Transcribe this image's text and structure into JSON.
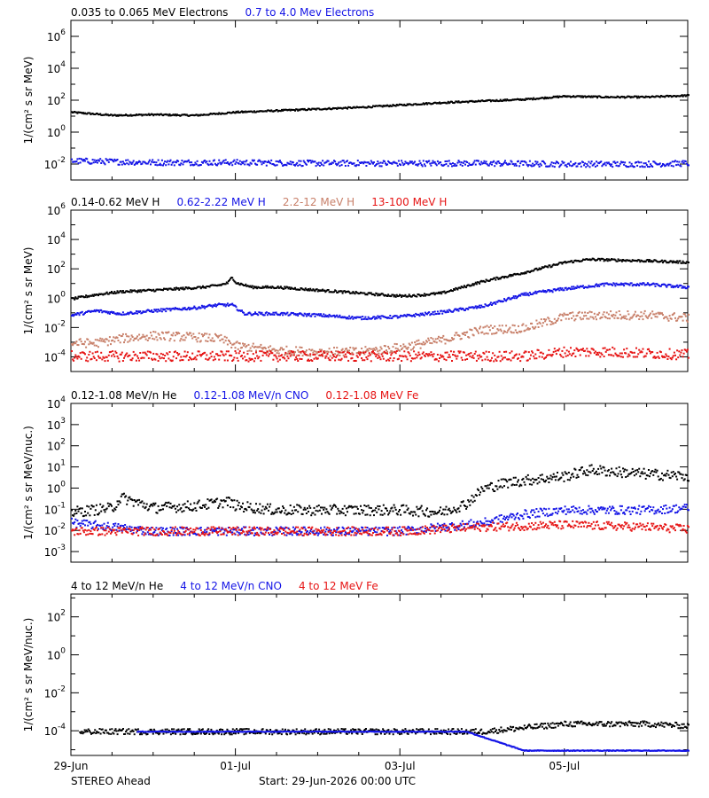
{
  "colors": {
    "black": "#000000",
    "blue": "#1414e6",
    "tan": "#c8806a",
    "red": "#e61414",
    "background": "#ffffff"
  },
  "x_axis": {
    "range": [
      0,
      7.5
    ],
    "range_note": "days since 29-Jun-2026 00:00 UTC",
    "tick_labels": [
      {
        "label": "29-Jun",
        "day": 0
      },
      {
        "label": "01-Jul",
        "day": 2
      },
      {
        "label": "03-Jul",
        "day": 4
      },
      {
        "label": "05-Jul",
        "day": 6
      }
    ]
  },
  "footer": {
    "spacecraft": "STEREO Ahead",
    "start": "Start: 29-Jun-2026 00:00 UTC"
  },
  "chart_data": [
    {
      "type": "scatter",
      "title": "",
      "ylabel": "1/(cm² s sr MeV)",
      "ylog": true,
      "ylim_exp": [
        -3,
        7
      ],
      "ytick_exps": [
        -2,
        0,
        2,
        4,
        6
      ],
      "ytick_minor_exps": [
        -3,
        -1,
        1,
        3,
        5,
        7
      ],
      "legend": [
        {
          "text": "0.035 to 0.065 MeV Electrons",
          "color": "black"
        },
        {
          "text": "0.7 to 4.0 Mev Electrons",
          "color": "blue"
        }
      ],
      "series": [
        {
          "color": "black",
          "spread": 0.05,
          "points": [
            [
              0,
              1.3
            ],
            [
              0.5,
              1.1
            ],
            [
              1,
              1.15
            ],
            [
              1.5,
              1.1
            ],
            [
              2,
              1.3
            ],
            [
              2.5,
              1.4
            ],
            [
              3,
              1.5
            ],
            [
              3.5,
              1.6
            ],
            [
              4,
              1.75
            ],
            [
              4.5,
              1.9
            ],
            [
              5,
              2.0
            ],
            [
              5.5,
              2.1
            ],
            [
              6,
              2.3
            ],
            [
              6.5,
              2.25
            ],
            [
              7,
              2.25
            ],
            [
              7.5,
              2.35
            ]
          ]
        },
        {
          "color": "blue",
          "spread": 0.18,
          "points": [
            [
              0,
              -1.75
            ],
            [
              0.5,
              -1.8
            ],
            [
              1,
              -1.85
            ],
            [
              1.5,
              -1.85
            ],
            [
              2,
              -1.85
            ],
            [
              3,
              -1.9
            ],
            [
              4,
              -1.9
            ],
            [
              5,
              -1.9
            ],
            [
              6,
              -1.95
            ],
            [
              7,
              -1.95
            ],
            [
              7.5,
              -1.9
            ]
          ]
        }
      ]
    },
    {
      "type": "scatter",
      "title": "",
      "ylabel": "1/(cm² s sr MeV)",
      "ylog": true,
      "ylim_exp": [
        -5,
        6
      ],
      "ytick_exps": [
        -4,
        -2,
        0,
        2,
        4,
        6
      ],
      "ytick_minor_exps": [
        -5,
        -3,
        -1,
        1,
        3,
        5
      ],
      "legend": [
        {
          "text": "0.14-0.62 MeV H",
          "color": "black"
        },
        {
          "text": "0.62-2.22 MeV H",
          "color": "blue"
        },
        {
          "text": "2.2-12 MeV H",
          "color": "tan"
        },
        {
          "text": "13-100 MeV H",
          "color": "red"
        }
      ],
      "series": [
        {
          "color": "black",
          "spread": 0.08,
          "points": [
            [
              0,
              0.0
            ],
            [
              0.3,
              0.3
            ],
            [
              0.6,
              0.5
            ],
            [
              1,
              0.6
            ],
            [
              1.3,
              0.7
            ],
            [
              1.6,
              0.8
            ],
            [
              1.8,
              0.95
            ],
            [
              1.9,
              1.1
            ],
            [
              1.95,
              1.5
            ],
            [
              2.0,
              1.1
            ],
            [
              2.2,
              0.8
            ],
            [
              2.5,
              0.8
            ],
            [
              3,
              0.6
            ],
            [
              3.5,
              0.4
            ],
            [
              4,
              0.2
            ],
            [
              4.2,
              0.25
            ],
            [
              4.5,
              0.4
            ],
            [
              5,
              1.2
            ],
            [
              5.5,
              1.8
            ],
            [
              6,
              2.5
            ],
            [
              6.3,
              2.7
            ],
            [
              7,
              2.6
            ],
            [
              7.5,
              2.5
            ]
          ]
        },
        {
          "color": "blue",
          "spread": 0.1,
          "points": [
            [
              0,
              -1.1
            ],
            [
              0.3,
              -0.8
            ],
            [
              0.6,
              -1.0
            ],
            [
              1,
              -0.8
            ],
            [
              1.5,
              -0.6
            ],
            [
              1.8,
              -0.4
            ],
            [
              1.95,
              -0.4
            ],
            [
              2.1,
              -1.0
            ],
            [
              2.5,
              -1.0
            ],
            [
              3,
              -1.1
            ],
            [
              3.5,
              -1.3
            ],
            [
              4,
              -1.2
            ],
            [
              4.5,
              -0.9
            ],
            [
              5,
              -0.5
            ],
            [
              5.5,
              0.3
            ],
            [
              6,
              0.7
            ],
            [
              6.5,
              1.0
            ],
            [
              7,
              1.0
            ],
            [
              7.5,
              0.8
            ]
          ]
        },
        {
          "color": "tan",
          "spread": 0.3,
          "points": [
            [
              0,
              -3.0
            ],
            [
              0.3,
              -3.0
            ],
            [
              0.6,
              -2.7
            ],
            [
              1,
              -2.5
            ],
            [
              1.5,
              -2.6
            ],
            [
              1.8,
              -2.7
            ],
            [
              2,
              -3.2
            ],
            [
              2.5,
              -3.5
            ],
            [
              3,
              -3.6
            ],
            [
              3.5,
              -3.6
            ],
            [
              4,
              -3.3
            ],
            [
              4.5,
              -2.8
            ],
            [
              5,
              -2.1
            ],
            [
              5.5,
              -2.0
            ],
            [
              6,
              -1.2
            ],
            [
              6.5,
              -1.1
            ],
            [
              7,
              -1.1
            ],
            [
              7.5,
              -1.3
            ]
          ]
        },
        {
          "color": "red",
          "spread": 0.35,
          "points": [
            [
              0,
              -3.9
            ],
            [
              1,
              -3.9
            ],
            [
              2,
              -3.9
            ],
            [
              3,
              -3.9
            ],
            [
              4,
              -3.9
            ],
            [
              5,
              -3.9
            ],
            [
              5.5,
              -3.9
            ],
            [
              6,
              -3.6
            ],
            [
              6.5,
              -3.6
            ],
            [
              7,
              -3.7
            ],
            [
              7.5,
              -3.8
            ]
          ]
        }
      ]
    },
    {
      "type": "scatter",
      "title": "",
      "ylabel": "1/(cm² s sr MeV/nuc.)",
      "ylog": true,
      "ylim_exp": [
        -3.5,
        4
      ],
      "ytick_exps": [
        -3,
        -2,
        -1,
        0,
        1,
        2,
        3,
        4
      ],
      "ytick_minor_exps": [],
      "legend": [
        {
          "text": "0.12-1.08 MeV/n He",
          "color": "black"
        },
        {
          "text": "0.12-1.08 MeV/n CNO",
          "color": "blue"
        },
        {
          "text": "0.12-1.08 MeV Fe",
          "color": "red"
        }
      ],
      "series": [
        {
          "color": "black",
          "spread": 0.25,
          "points": [
            [
              0,
              -1.1
            ],
            [
              0.5,
              -0.9
            ],
            [
              0.6,
              -0.4
            ],
            [
              1,
              -0.9
            ],
            [
              1.5,
              -0.8
            ],
            [
              1.9,
              -0.6
            ],
            [
              2,
              -0.8
            ],
            [
              2.5,
              -1.0
            ],
            [
              3,
              -1.0
            ],
            [
              4,
              -1.0
            ],
            [
              4.5,
              -1.1
            ],
            [
              4.8,
              -0.7
            ],
            [
              5,
              0.0
            ],
            [
              5.3,
              0.3
            ],
            [
              5.5,
              0.4
            ],
            [
              6,
              0.6
            ],
            [
              6.3,
              0.9
            ],
            [
              7,
              0.7
            ],
            [
              7.5,
              0.6
            ]
          ]
        },
        {
          "color": "blue",
          "spread": 0.2,
          "points": [
            [
              0,
              -1.6
            ],
            [
              1,
              -2.0
            ],
            [
              2,
              -2.0
            ],
            [
              3,
              -2.0
            ],
            [
              4,
              -2.0
            ],
            [
              5,
              -1.6
            ],
            [
              5.5,
              -1.2
            ],
            [
              6,
              -1.0
            ],
            [
              7,
              -1.0
            ],
            [
              7.5,
              -0.9
            ]
          ]
        },
        {
          "color": "red",
          "spread": 0.2,
          "points": [
            [
              0,
              -2.0
            ],
            [
              1,
              -2.0
            ],
            [
              2,
              -2.0
            ],
            [
              3,
              -2.0
            ],
            [
              4,
              -2.0
            ],
            [
              5,
              -1.8
            ],
            [
              6,
              -1.7
            ],
            [
              7,
              -1.8
            ],
            [
              7.5,
              -1.9
            ]
          ]
        }
      ]
    },
    {
      "type": "scatter",
      "title": "",
      "ylabel": "1/(cm² s sr MeV/nuc.)",
      "ylog": true,
      "ylim_exp": [
        -5.3,
        3.2
      ],
      "ytick_exps": [
        -4,
        -2,
        0,
        2
      ],
      "ytick_minor_exps": [
        -5,
        -3,
        -1,
        1,
        3
      ],
      "legend": [
        {
          "text": "4 to 12 MeV/n He",
          "color": "black"
        },
        {
          "text": "4 to 12 MeV/n CNO",
          "color": "blue"
        },
        {
          "text": "4 to 12 MeV Fe",
          "color": "red"
        }
      ],
      "series": [
        {
          "color": "black",
          "spread": 0.15,
          "points": [
            [
              0.1,
              -4.0
            ],
            [
              1,
              -4.0
            ],
            [
              2,
              -4.0
            ],
            [
              3,
              -4.0
            ],
            [
              4,
              -4.0
            ],
            [
              5,
              -4.0
            ],
            [
              5.5,
              -3.8
            ],
            [
              6,
              -3.6
            ],
            [
              6.5,
              -3.6
            ],
            [
              7,
              -3.6
            ],
            [
              7.5,
              -3.7
            ]
          ]
        },
        {
          "color": "blue",
          "spread": 0.02,
          "points": [
            [
              0.8,
              -4.0
            ],
            [
              1.3,
              -4.0
            ],
            [
              2.5,
              -4.0
            ],
            [
              3.3,
              -4.0
            ],
            [
              4.2,
              -4.0
            ],
            [
              4.8,
              -4.0
            ],
            [
              5.5,
              -5.0
            ],
            [
              6.5,
              -5.0
            ],
            [
              7.5,
              -5.0
            ]
          ]
        }
      ]
    }
  ]
}
